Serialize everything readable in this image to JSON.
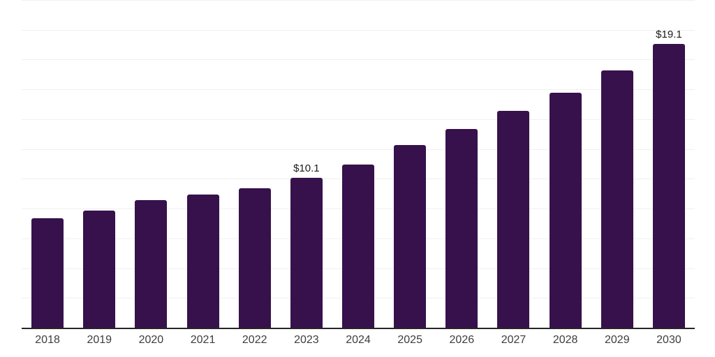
{
  "chart_data": {
    "type": "bar",
    "title": "",
    "xlabel": "",
    "ylabel": "",
    "categories": [
      "2018",
      "2019",
      "2020",
      "2021",
      "2022",
      "2023",
      "2024",
      "2025",
      "2026",
      "2027",
      "2028",
      "2029",
      "2030"
    ],
    "values": [
      7.4,
      7.9,
      8.6,
      9.0,
      9.4,
      10.1,
      11.0,
      12.3,
      13.4,
      14.6,
      15.8,
      17.3,
      19.1
    ],
    "data_labels": [
      "",
      "",
      "",
      "",
      "",
      "$10.1",
      "",
      "",
      "",
      "",
      "",
      "",
      "$19.1"
    ],
    "ylim": [
      0,
      22
    ],
    "gridline_step": 2,
    "grid": "horizontal-only",
    "legend": "none",
    "y_axis_labels_visible": false,
    "colors": {
      "bar": "#36114B",
      "axis_line": "#262626",
      "gridline": "#f0f0f0",
      "data_label": "#1a1a1a",
      "tick_label": "#3d3d3d",
      "background": "#ffffff"
    }
  }
}
